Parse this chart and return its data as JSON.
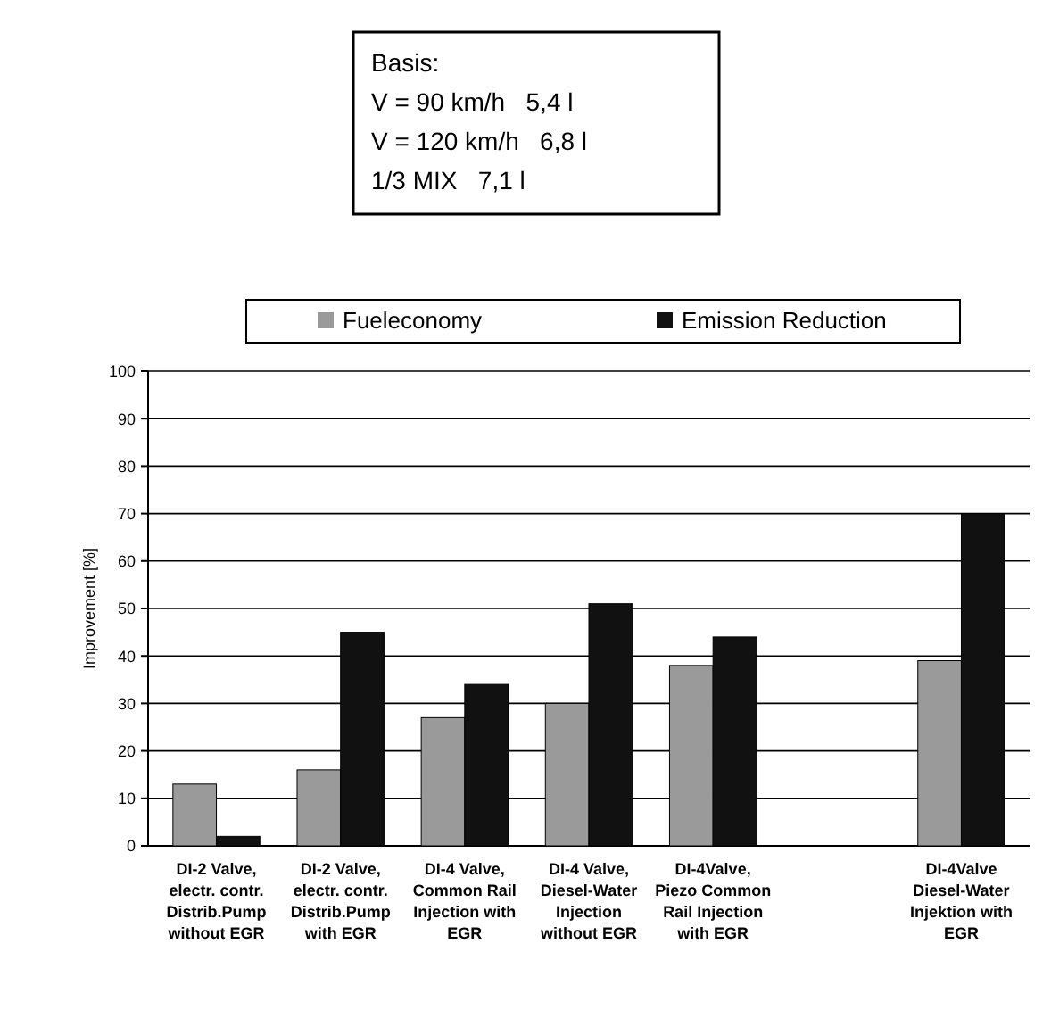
{
  "chart_data": {
    "type": "bar",
    "ylabel": "Improvement [%]",
    "categories": [
      "DI-2 Valve, electr. contr. Distrib.Pump without EGR",
      "DI-2 Valve, electr. contr. Distrib.Pump with EGR",
      "DI-4 Valve, Common Rail Injection with EGR",
      "DI-4 Valve, Diesel-Water Injection without EGR",
      "DI-4Valve, Piezo Common Rail Injection with EGR",
      null,
      "DI-4Valve Diesel-Water Injektion with EGR"
    ],
    "series": [
      {
        "name": "Fueleconomy",
        "color": "#9a9a9a",
        "values": [
          13,
          16,
          27,
          30,
          38,
          null,
          39
        ]
      },
      {
        "name": "Emission Reduction",
        "color": "#111111",
        "values": [
          2,
          45,
          34,
          51,
          44,
          null,
          70
        ]
      }
    ],
    "ylim": [
      0,
      100
    ],
    "yticks": [
      0,
      10,
      20,
      30,
      40,
      50,
      60,
      70,
      80,
      90,
      100
    ],
    "grid": "y",
    "legend": "top",
    "annotations": [
      "Basis:",
      "V = 90 km/h   5,4 l",
      "V = 120 km/h   6,8 l",
      "1/3 MIX   7,1 l"
    ]
  }
}
